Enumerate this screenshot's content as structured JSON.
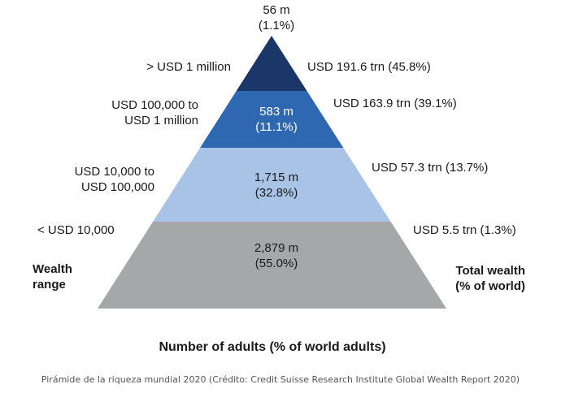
{
  "chart_data": {
    "type": "pyramid",
    "colors": [
      "#1b3668",
      "#2e68b0",
      "#a8c3e5",
      "#a6a7a9"
    ],
    "tiers": [
      {
        "wealth_range": "> USD 1 million",
        "adults_millions": 56,
        "adults_label": "56 m",
        "adults_pct_label": "(1.1%)",
        "total_wealth": "USD 191.6 trn (45.8%)"
      },
      {
        "wealth_range": "USD 100,000 to USD 1 million",
        "adults_millions": 583,
        "adults_label": "583 m",
        "adults_pct_label": "(11.1%)",
        "total_wealth": "USD 163.9 trn (39.1%)"
      },
      {
        "wealth_range": "USD 10,000 to USD 100,000",
        "adults_millions": 1715,
        "adults_label": "1,715 m",
        "adults_pct_label": "(32.8%)",
        "total_wealth": "USD 57.3 trn (13.7%)"
      },
      {
        "wealth_range": "< USD 10,000",
        "adults_millions": 2879,
        "adults_label": "2,879 m",
        "adults_pct_label": "(55.0%)",
        "total_wealth": "USD 5.5 trn (1.3%)"
      }
    ],
    "left_axis_title": [
      "Wealth",
      "range"
    ],
    "right_axis_title": [
      "Total wealth",
      "(% of world)"
    ],
    "bottom_title": "Number of adults (% of world adults)"
  },
  "labels": {
    "left": {
      "t1": "> USD 1 million",
      "t2_line1": "USD 100,000 to",
      "t2_line2": "USD 1 million",
      "t3_line1": "USD 10,000 to",
      "t3_line2": "USD 100,000",
      "t4": "< USD 10,000"
    }
  },
  "caption": "Pirámide de la riqueza mundial 2020 (Crédito: Credit Suisse Research Institute Global Wealth Report 2020)"
}
